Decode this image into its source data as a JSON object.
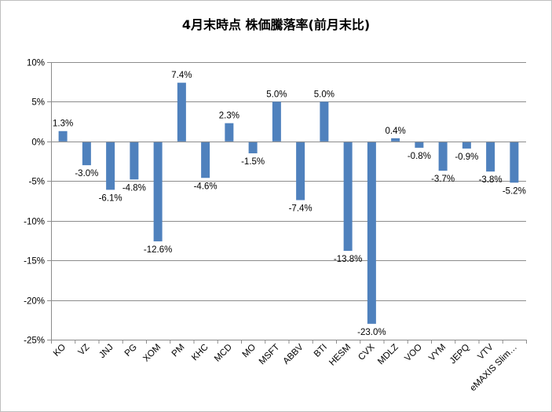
{
  "chart_data": {
    "type": "bar",
    "title": "4月末時点 株価騰落率(前月末比)",
    "xlabel": "",
    "ylabel": "",
    "ylim": [
      -25,
      10
    ],
    "yticks": [
      10,
      5,
      0,
      -5,
      -10,
      -15,
      -20,
      -25
    ],
    "ytick_labels": [
      "10%",
      "5%",
      "0%",
      "-5%",
      "-10%",
      "-15%",
      "-20%",
      "-25%"
    ],
    "grid": true,
    "legend": "none",
    "categories": [
      "KO",
      "VZ",
      "JNJ",
      "PG",
      "XOM",
      "PM",
      "KHC",
      "MCD",
      "MO",
      "MSFT",
      "ABBV",
      "BTI",
      "HESM",
      "CVX",
      "MDLZ",
      "VOO",
      "VYM",
      "JEPQ",
      "VTV",
      "eMAXIS Slim…"
    ],
    "values": [
      1.3,
      -3.0,
      -6.1,
      -4.8,
      -12.6,
      7.4,
      -4.6,
      2.3,
      -1.5,
      5.0,
      -7.4,
      5.0,
      -13.8,
      -23.0,
      0.4,
      -0.8,
      -3.7,
      -0.9,
      -3.8,
      -5.2
    ],
    "data_labels": [
      "1.3%",
      "-3.0%",
      "-6.1%",
      "-4.8%",
      "-12.6%",
      "7.4%",
      "-4.6%",
      "2.3%",
      "-1.5%",
      "5.0%",
      "-7.4%",
      "5.0%",
      "-13.8%",
      "-23.0%",
      "0.4%",
      "-0.8%",
      "-3.7%",
      "-0.9%",
      "-3.8%",
      "-5.2%"
    ],
    "bar_color": "#4f81bd",
    "grid_color": "#8c8c8c"
  }
}
